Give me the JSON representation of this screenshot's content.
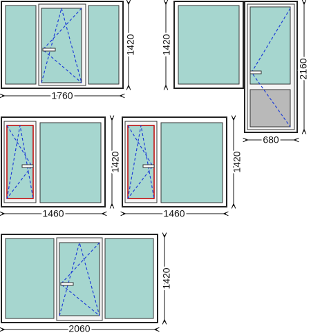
{
  "windows": [
    {
      "width": "1760",
      "height": "1420"
    },
    {
      "height": "1420"
    },
    {
      "width": "680",
      "height": "2160"
    },
    {
      "width": "1460",
      "height": "1420"
    },
    {
      "width": "1460",
      "height": "1420"
    },
    {
      "width": "2060",
      "height": "1420"
    }
  ]
}
